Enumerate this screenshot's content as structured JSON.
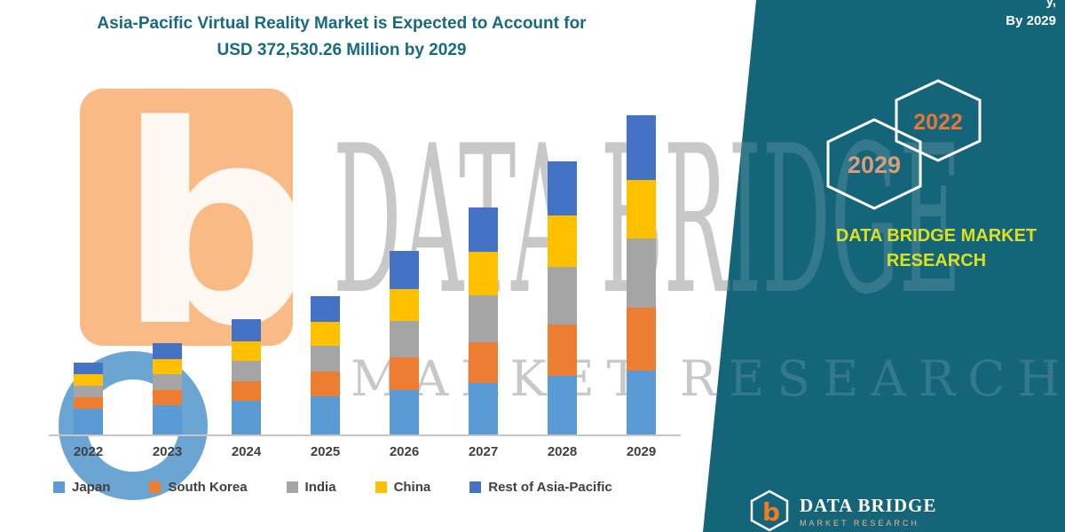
{
  "title": {
    "line1": "Asia-Pacific Virtual Reality Market is Expected to Account for",
    "line2": "USD 372,530.26 Million by 2029"
  },
  "top_right": {
    "line1": "y,",
    "line2": "By 2029"
  },
  "side_panel": {
    "hex_left_label": "2029",
    "hex_right_label": "2022",
    "brand_line1": "DATA BRIDGE MARKET",
    "brand_line2": "RESEARCH"
  },
  "watermark": {
    "line1": "DATA BRIDGE",
    "line2": "MARKET RESEARCH"
  },
  "footer_logo": {
    "icon_letter": "b",
    "name": "DATA BRIDGE",
    "subname": "MARKET RESEARCH"
  },
  "left_logo": {
    "letter": "b"
  },
  "colors": {
    "panel_teal": "#15657A",
    "title_teal": "#176B80",
    "brand_yellow": "#DCE021",
    "hex_2029_text": "#D69E7E",
    "hex_2022_text": "#E2783C",
    "logo_orange": "#F47B20",
    "logo_blue": "#1B75BC",
    "axis_gray": "#C6C6C6",
    "label_gray": "#3F3F3F"
  },
  "chart_data": {
    "type": "bar",
    "stacked": true,
    "title": "Asia-Pacific Virtual Reality Market is Expected to Account for USD 372,530.26 Million by 2029",
    "unit": "USD Million",
    "categories": [
      "2022",
      "2023",
      "2024",
      "2025",
      "2026",
      "2027",
      "2028",
      "2029"
    ],
    "series": [
      {
        "name": "Japan",
        "color": "#5B9BD5",
        "values": [
          30000,
          34000,
          39000,
          45000,
          52000,
          60000,
          68000,
          75000
        ]
      },
      {
        "name": "South Korea",
        "color": "#ED7D31",
        "values": [
          14000,
          18000,
          23000,
          28000,
          38000,
          48000,
          60000,
          73000
        ]
      },
      {
        "name": "India",
        "color": "#A5A5A5",
        "values": [
          13000,
          18000,
          24000,
          30000,
          42000,
          55000,
          68000,
          81000
        ]
      },
      {
        "name": "China",
        "color": "#FFC000",
        "values": [
          13000,
          18000,
          23000,
          28000,
          38000,
          50000,
          60000,
          68500
        ]
      },
      {
        "name": "Rest of Asia-Pacific",
        "color": "#4472C4",
        "values": [
          13500,
          19000,
          26000,
          30000,
          44000,
          52000,
          63000,
          75030.26
        ]
      }
    ],
    "ylim": [
      0,
      380000
    ],
    "grid": false,
    "legend_position": "bottom"
  }
}
